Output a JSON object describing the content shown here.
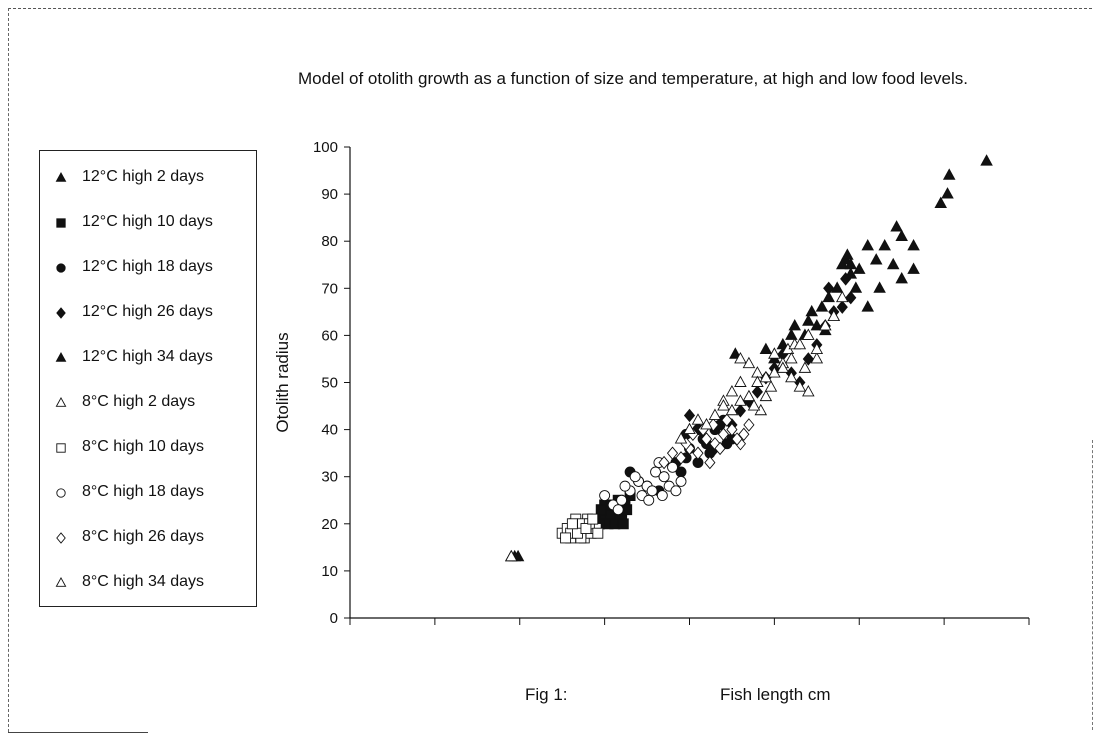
{
  "figure": {
    "title": "Model of otolith growth as a function of size and temperature, at high and low food levels.",
    "fig_label": "Fig 1:"
  },
  "colors": {
    "ink": "#111111",
    "fill_12C": "#111111",
    "fill_8C": "#ffffff",
    "frame": "#555555"
  },
  "chart_data": {
    "type": "scatter",
    "title": "Model of otolith growth as a function of size and temperature, at high and low food levels.",
    "xlabel": "Fish length cm",
    "ylabel": "Otolith radius",
    "xlim": [
      0,
      4
    ],
    "ylim": [
      0,
      100
    ],
    "x_ticks": [
      "0",
      "0.5",
      "1",
      "1.5",
      "2",
      "2.5",
      "3",
      "3.5",
      "4"
    ],
    "y_ticks": [
      "0",
      "10",
      "20",
      "30",
      "40",
      "50",
      "60",
      "70",
      "80",
      "90",
      "100"
    ],
    "grid": false,
    "legend_position": "left",
    "series": [
      {
        "name": "12°C  high 2 days",
        "marker": "triangle",
        "filled": true,
        "points": [
          [
            0.95,
            13
          ],
          [
            0.97,
            13
          ],
          [
            0.99,
            13
          ],
          [
            3.48,
            88
          ],
          [
            3.52,
            90
          ],
          [
            3.53,
            94
          ],
          [
            3.75,
            97
          ],
          [
            2.92,
            76
          ],
          [
            3.0,
            74
          ],
          [
            3.05,
            79
          ],
          [
            3.15,
            79
          ],
          [
            3.22,
            83
          ],
          [
            3.25,
            81
          ],
          [
            3.32,
            79
          ],
          [
            3.32,
            74
          ],
          [
            3.1,
            76
          ],
          [
            3.2,
            75
          ],
          [
            3.12,
            70
          ],
          [
            3.05,
            66
          ],
          [
            3.25,
            72
          ]
        ]
      },
      {
        "name": "12°C  high 10 days",
        "marker": "square",
        "filled": true,
        "points": [
          [
            1.45,
            19
          ],
          [
            1.48,
            21
          ],
          [
            1.5,
            22
          ],
          [
            1.52,
            20
          ],
          [
            1.55,
            23
          ],
          [
            1.57,
            21
          ],
          [
            1.6,
            22
          ],
          [
            1.62,
            24
          ],
          [
            1.58,
            25
          ],
          [
            1.53,
            22
          ],
          [
            1.5,
            24
          ],
          [
            1.65,
            26
          ],
          [
            1.48,
            23
          ],
          [
            1.56,
            20
          ],
          [
            1.6,
            21
          ],
          [
            1.63,
            23
          ],
          [
            1.47,
            20
          ],
          [
            1.54,
            24
          ],
          [
            1.59,
            23
          ],
          [
            1.61,
            20
          ]
        ]
      },
      {
        "name": "12°C  high 18 days",
        "marker": "circle",
        "filled": true,
        "points": [
          [
            1.65,
            31
          ],
          [
            1.75,
            28
          ],
          [
            1.85,
            30
          ],
          [
            1.92,
            33
          ],
          [
            1.98,
            34
          ],
          [
            2.05,
            33
          ],
          [
            2.1,
            37
          ],
          [
            2.15,
            40
          ],
          [
            2.2,
            42
          ],
          [
            2.25,
            38
          ],
          [
            2.0,
            36
          ],
          [
            2.08,
            38
          ],
          [
            1.95,
            31
          ],
          [
            2.12,
            35
          ],
          [
            1.7,
            29
          ],
          [
            1.82,
            27
          ],
          [
            1.98,
            39
          ],
          [
            2.18,
            41
          ],
          [
            2.22,
            37
          ],
          [
            2.05,
            40
          ]
        ]
      },
      {
        "name": "12°C  high 26 days",
        "marker": "diamond",
        "filled": true,
        "points": [
          [
            2.0,
            43
          ],
          [
            2.1,
            38
          ],
          [
            2.15,
            36
          ],
          [
            2.25,
            41
          ],
          [
            2.3,
            44
          ],
          [
            2.35,
            46
          ],
          [
            2.4,
            48
          ],
          [
            2.45,
            51
          ],
          [
            2.5,
            53
          ],
          [
            2.55,
            56
          ],
          [
            2.6,
            52
          ],
          [
            2.65,
            50
          ],
          [
            2.7,
            55
          ],
          [
            2.75,
            58
          ],
          [
            2.8,
            62
          ],
          [
            2.85,
            65
          ],
          [
            2.9,
            66
          ],
          [
            2.95,
            68
          ],
          [
            2.92,
            72
          ],
          [
            2.82,
            70
          ]
        ]
      },
      {
        "name": "12°C  high 34 days",
        "marker": "triangle",
        "filled": true,
        "points": [
          [
            2.27,
            56
          ],
          [
            2.45,
            57
          ],
          [
            2.6,
            60
          ],
          [
            2.7,
            63
          ],
          [
            2.78,
            66
          ],
          [
            2.82,
            68
          ],
          [
            2.9,
            75
          ],
          [
            2.87,
            70
          ],
          [
            2.95,
            73
          ],
          [
            2.98,
            70
          ],
          [
            2.75,
            62
          ],
          [
            2.68,
            60
          ],
          [
            2.55,
            58
          ],
          [
            2.85,
            64
          ],
          [
            2.93,
            77
          ],
          [
            2.8,
            61
          ],
          [
            2.72,
            65
          ],
          [
            2.62,
            62
          ],
          [
            2.5,
            55
          ],
          [
            2.95,
            75
          ]
        ]
      },
      {
        "name": "8°C  high 2 days",
        "marker": "triangle",
        "filled": false,
        "points": [
          [
            0.95,
            13
          ],
          [
            2.2,
            46
          ],
          [
            2.3,
            50
          ],
          [
            2.35,
            54
          ],
          [
            2.4,
            52
          ],
          [
            2.45,
            47
          ],
          [
            2.5,
            56
          ],
          [
            2.55,
            54
          ],
          [
            2.6,
            51
          ],
          [
            2.65,
            49
          ],
          [
            2.7,
            48
          ],
          [
            2.75,
            55
          ],
          [
            2.3,
            55
          ],
          [
            2.42,
            44
          ],
          [
            2.58,
            57
          ],
          [
            2.68,
            53
          ],
          [
            2.25,
            48
          ],
          [
            2.48,
            49
          ],
          [
            2.62,
            58
          ],
          [
            2.38,
            45
          ]
        ]
      },
      {
        "name": "8°C  high 10 days",
        "marker": "square",
        "filled": false,
        "points": [
          [
            1.25,
            18
          ],
          [
            1.3,
            17
          ],
          [
            1.32,
            20
          ],
          [
            1.35,
            19
          ],
          [
            1.38,
            17
          ],
          [
            1.4,
            21
          ],
          [
            1.42,
            18
          ],
          [
            1.28,
            19
          ],
          [
            1.33,
            21
          ],
          [
            1.37,
            20
          ],
          [
            1.45,
            19
          ],
          [
            1.3,
            18
          ],
          [
            1.36,
            17
          ],
          [
            1.41,
            20
          ],
          [
            1.27,
            17
          ],
          [
            1.34,
            18
          ],
          [
            1.39,
            19
          ],
          [
            1.43,
            21
          ],
          [
            1.31,
            20
          ],
          [
            1.46,
            18
          ]
        ]
      },
      {
        "name": "8°C  high 18 days",
        "marker": "circle",
        "filled": false,
        "points": [
          [
            1.5,
            26
          ],
          [
            1.55,
            24
          ],
          [
            1.6,
            25
          ],
          [
            1.65,
            27
          ],
          [
            1.7,
            29
          ],
          [
            1.75,
            28
          ],
          [
            1.8,
            31
          ],
          [
            1.85,
            30
          ],
          [
            1.9,
            32
          ],
          [
            1.95,
            29
          ],
          [
            1.72,
            26
          ],
          [
            1.78,
            27
          ],
          [
            1.82,
            33
          ],
          [
            1.68,
            30
          ],
          [
            1.88,
            28
          ],
          [
            1.62,
            28
          ],
          [
            1.58,
            23
          ],
          [
            1.92,
            27
          ],
          [
            1.76,
            25
          ],
          [
            1.84,
            26
          ]
        ]
      },
      {
        "name": "8°C  high 26 days",
        "marker": "diamond",
        "filled": false,
        "points": [
          [
            1.95,
            34
          ],
          [
            2.0,
            36
          ],
          [
            2.05,
            35
          ],
          [
            2.1,
            38
          ],
          [
            2.15,
            37
          ],
          [
            2.2,
            39
          ],
          [
            2.25,
            40
          ],
          [
            2.3,
            37
          ],
          [
            2.35,
            41
          ],
          [
            1.85,
            33
          ],
          [
            1.9,
            35
          ],
          [
            2.02,
            39
          ],
          [
            2.12,
            33
          ],
          [
            2.18,
            36
          ],
          [
            2.22,
            42
          ],
          [
            2.28,
            38
          ],
          [
            2.08,
            40
          ],
          [
            1.98,
            37
          ],
          [
            2.14,
            41
          ],
          [
            2.32,
            39
          ]
        ]
      },
      {
        "name": "8°C  high 34 days",
        "marker": "triangle",
        "filled": false,
        "points": [
          [
            1.95,
            38
          ],
          [
            2.0,
            40
          ],
          [
            2.05,
            42
          ],
          [
            2.1,
            41
          ],
          [
            2.15,
            43
          ],
          [
            2.2,
            45
          ],
          [
            2.25,
            44
          ],
          [
            2.3,
            46
          ],
          [
            2.4,
            50
          ],
          [
            2.5,
            52
          ],
          [
            2.6,
            55
          ],
          [
            2.7,
            60
          ],
          [
            2.8,
            62
          ],
          [
            2.85,
            64
          ],
          [
            2.75,
            57
          ],
          [
            2.65,
            58
          ],
          [
            2.55,
            53
          ],
          [
            2.45,
            51
          ],
          [
            2.35,
            47
          ],
          [
            2.9,
            68
          ]
        ]
      }
    ]
  }
}
